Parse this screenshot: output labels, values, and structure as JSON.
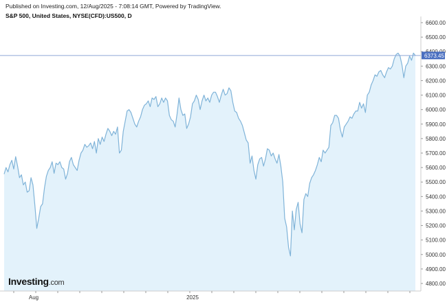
{
  "header": {
    "published": "Published on Investing.com, 12/Aug/2025 - 7:08:14 GMT, Powered by TradingView.",
    "symbol": "S&P 500, United States, NYSE(CFD):US500, D"
  },
  "logo": {
    "main": "Investing",
    "suffix": ".com"
  },
  "colors": {
    "line": "#7fb3d8",
    "area": "#e3f2fb",
    "price_line": "#8fa8d8",
    "price_label_bg": "#4a6fc0",
    "axis": "#cccccc"
  },
  "chart_data": {
    "type": "area",
    "title": "S&P 500, United States, NYSE(CFD):US500, D",
    "xlabel": "",
    "ylabel": "",
    "ylim": [
      4700,
      6650
    ],
    "x_ticks": [
      "Aug",
      "2025"
    ],
    "y_ticks": [
      "6600.00",
      "6500.00",
      "6400.00",
      "6300.00",
      "6200.00",
      "6100.00",
      "6000.00",
      "5900.00",
      "5800.00",
      "5700.00",
      "5600.00",
      "5500.00",
      "5400.00",
      "5300.00",
      "5200.00",
      "5100.00",
      "5000.00",
      "4900.00",
      "4800.00"
    ],
    "last_price": 6373.45,
    "last_price_label": "6373.45",
    "grid": false,
    "series": [
      {
        "values": [
          5555,
          5600,
          5570,
          5620,
          5650,
          5590,
          5675,
          5610,
          5530,
          5550,
          5480,
          5500,
          5430,
          5440,
          5530,
          5480,
          5340,
          5180,
          5250,
          5330,
          5350,
          5460,
          5540,
          5580,
          5600,
          5640,
          5560,
          5630,
          5620,
          5640,
          5600,
          5590,
          5520,
          5560,
          5640,
          5670,
          5620,
          5600,
          5580,
          5650,
          5700,
          5720,
          5760,
          5740,
          5750,
          5770,
          5730,
          5780,
          5700,
          5800,
          5760,
          5810,
          5780,
          5830,
          5870,
          5850,
          5820,
          5850,
          5830,
          5880,
          5700,
          5720,
          5850,
          5920,
          5990,
          6000,
          5980,
          5940,
          5900,
          5880,
          5920,
          5950,
          6000,
          6030,
          6040,
          6060,
          6020,
          6080,
          6070,
          6090,
          6020,
          6040,
          6080,
          6050,
          6080,
          6060,
          5960,
          5930,
          5920,
          5880,
          5970,
          6080,
          6000,
          5960,
          5970,
          5870,
          5900,
          5950,
          6040,
          6060,
          6100,
          6070,
          6000,
          6060,
          6100,
          6060,
          6080,
          6050,
          6100,
          6120,
          6120,
          6090,
          6050,
          6100,
          6140,
          6100,
          6110,
          6150,
          6130,
          6050,
          5990,
          5980,
          5940,
          5920,
          5890,
          5840,
          5790,
          5770,
          5630,
          5680,
          5580,
          5520,
          5620,
          5660,
          5670,
          5610,
          5660,
          5730,
          5720,
          5680,
          5700,
          5660,
          5630,
          5690,
          5610,
          5500,
          5250,
          5190,
          5050,
          4990,
          5300,
          5170,
          5310,
          5360,
          5210,
          5150,
          5380,
          5420,
          5400,
          5490,
          5530,
          5550,
          5580,
          5620,
          5670,
          5640,
          5720,
          5700,
          5720,
          5740,
          5890,
          5910,
          5960,
          5960,
          5940,
          5860,
          5810,
          5880,
          5900,
          5920,
          5950,
          5940,
          5970,
          5990,
          5990,
          6050,
          6010,
          6040,
          5980,
          6100,
          6120,
          6170,
          6200,
          6240,
          6230,
          6260,
          6270,
          6240,
          6220,
          6260,
          6290,
          6280,
          6300,
          6350,
          6380,
          6390,
          6370,
          6310,
          6220,
          6300,
          6320,
          6370,
          6340,
          6390,
          6373.45
        ]
      }
    ]
  }
}
